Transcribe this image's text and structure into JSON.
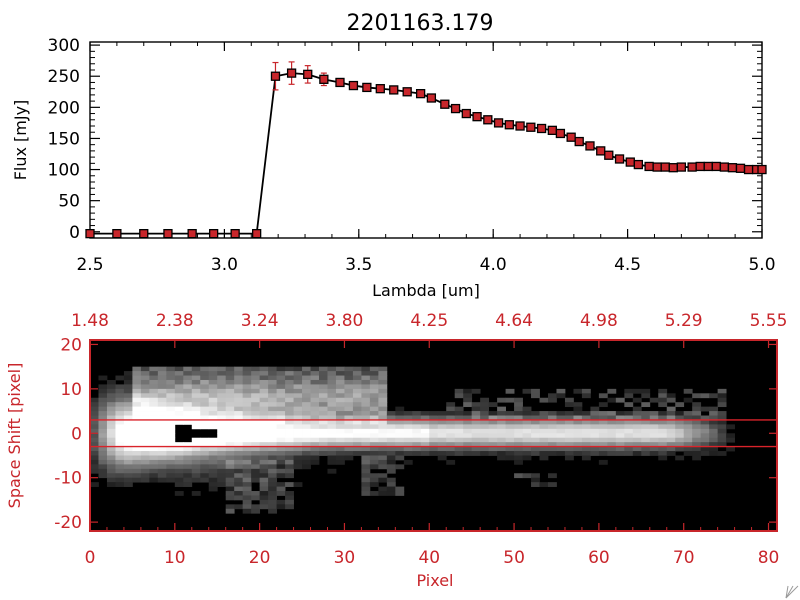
{
  "chart_data": [
    {
      "type": "line",
      "title": "2201163.179",
      "xlabel": "Lambda [um]",
      "ylabel": "Flux [mJy]",
      "xlim": [
        2.5,
        5.0
      ],
      "ylim": [
        -10,
        305
      ],
      "x_ticks": [
        "2.5",
        "3.0",
        "3.5",
        "4.0",
        "4.5",
        "5.0"
      ],
      "y_ticks": [
        "0",
        "50",
        "100",
        "150",
        "200",
        "250",
        "300"
      ],
      "colors": {
        "line": "#000000",
        "marker": "#c8262b",
        "errorbar": "#c8262b"
      },
      "series": [
        {
          "x": [
            2.5,
            2.6,
            2.7,
            2.79,
            2.88,
            2.96,
            3.04,
            3.12,
            3.19,
            3.25,
            3.31,
            3.37,
            3.43,
            3.48,
            3.53,
            3.58,
            3.63,
            3.68,
            3.73,
            3.77,
            3.82,
            3.86,
            3.9,
            3.94,
            3.98,
            4.02,
            4.06,
            4.1,
            4.14,
            4.18,
            4.22,
            4.25,
            4.29,
            4.32,
            4.36,
            4.4,
            4.43,
            4.47,
            4.51,
            4.54,
            4.58,
            4.61,
            4.64,
            4.67,
            4.7,
            4.74,
            4.77,
            4.8,
            4.83,
            4.86,
            4.89,
            4.92,
            4.95,
            4.98,
            5.0
          ],
          "y": [
            -3,
            -3,
            -3,
            -3,
            -3,
            -3,
            -3,
            -3,
            250,
            255,
            253,
            245,
            240,
            235,
            232,
            230,
            228,
            225,
            222,
            215,
            205,
            198,
            190,
            185,
            180,
            175,
            172,
            170,
            168,
            166,
            163,
            158,
            152,
            145,
            138,
            130,
            123,
            117,
            112,
            108,
            105,
            104,
            104,
            103,
            104,
            104,
            105,
            105,
            105,
            104,
            103,
            102,
            100,
            100,
            100
          ],
          "yerr": [
            0,
            0,
            0,
            0,
            0,
            0,
            0,
            0,
            22,
            18,
            14,
            10,
            4,
            3,
            3,
            3,
            3,
            3,
            3,
            3,
            3,
            3,
            3,
            3,
            3,
            3,
            3,
            3,
            3,
            3,
            3,
            3,
            3,
            3,
            3,
            3,
            3,
            3,
            3,
            3,
            3,
            3,
            3,
            3,
            3,
            3,
            3,
            3,
            3,
            3,
            3,
            3,
            3,
            3,
            3
          ]
        }
      ]
    },
    {
      "type": "heatmap",
      "xlabel": "Pixel",
      "ylabel": "Space Shift [pixel]",
      "xlim": [
        0,
        81
      ],
      "ylim": [
        -22,
        21
      ],
      "x_ticks": [
        "0",
        "10",
        "20",
        "30",
        "40",
        "50",
        "60",
        "70",
        "80"
      ],
      "y_ticks": [
        "-20",
        "-10",
        "0",
        "10",
        "20"
      ],
      "top_ticks": [
        "1.48",
        "2.38",
        "3.24",
        "3.80",
        "4.25",
        "4.64",
        "4.98",
        "5.29",
        "5.55"
      ],
      "extraction_window": [
        -3,
        3
      ],
      "colors": {
        "axis": "#c8262b",
        "window": "#d9232a",
        "background": "#000000"
      }
    }
  ]
}
